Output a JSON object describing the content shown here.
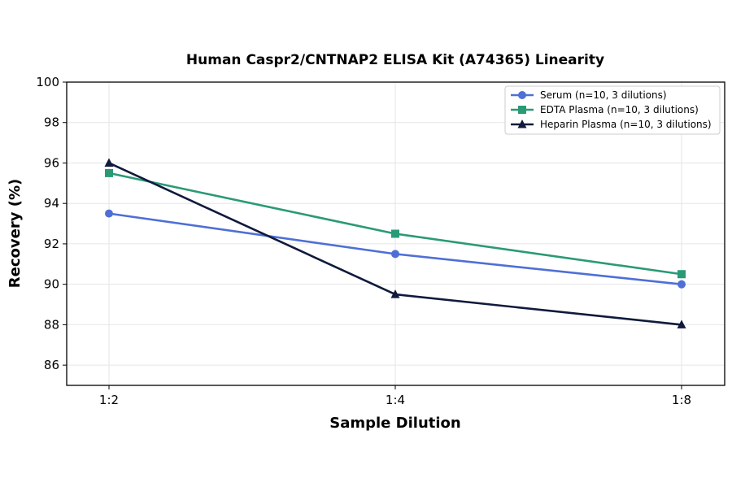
{
  "chart_data": {
    "type": "line",
    "title": "Human Caspr2/CNTNAP2 ELISA Kit (A74365) Linearity",
    "xlabel": "Sample Dilution",
    "ylabel": "Recovery (%)",
    "categories": [
      "1:2",
      "1:4",
      "1:8"
    ],
    "ylim": [
      85,
      100
    ],
    "yticks": [
      86,
      88,
      90,
      92,
      94,
      96,
      98,
      100
    ],
    "grid": true,
    "legend_position": "top-right",
    "series": [
      {
        "name": "Serum (n=10, 3 dilutions)",
        "values": [
          93.5,
          91.5,
          90.0
        ],
        "color": "#4f6fd6",
        "marker": "circle"
      },
      {
        "name": "EDTA Plasma (n=10, 3 dilutions)",
        "values": [
          95.5,
          92.5,
          90.5
        ],
        "color": "#2a9a76",
        "marker": "square"
      },
      {
        "name": "Heparin Plasma (n=10, 3 dilutions)",
        "values": [
          96.0,
          89.5,
          88.0
        ],
        "color": "#0f1a3c",
        "marker": "triangle"
      }
    ]
  }
}
